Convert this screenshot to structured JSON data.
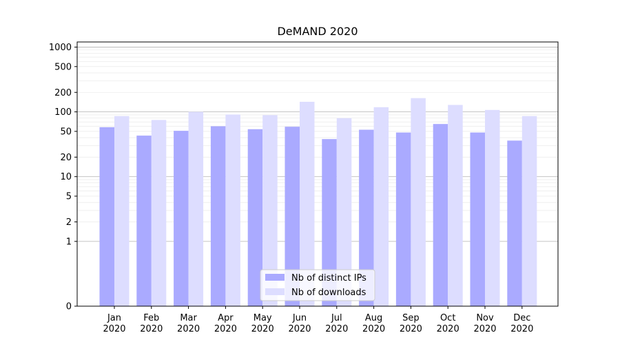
{
  "chart_data": {
    "type": "bar",
    "title": "DeMAND 2020",
    "xlabel": "",
    "ylabel": "",
    "yscale": "symlog",
    "ylim": [
      0,
      1200
    ],
    "grid": "horizontal",
    "legend_position": "bottom-center",
    "categories": [
      [
        "Jan",
        "2020"
      ],
      [
        "Feb",
        "2020"
      ],
      [
        "Mar",
        "2020"
      ],
      [
        "Apr",
        "2020"
      ],
      [
        "May",
        "2020"
      ],
      [
        "Jun",
        "2020"
      ],
      [
        "Jul",
        "2020"
      ],
      [
        "Aug",
        "2020"
      ],
      [
        "Sep",
        "2020"
      ],
      [
        "Oct",
        "2020"
      ],
      [
        "Nov",
        "2020"
      ],
      [
        "Dec",
        "2020"
      ]
    ],
    "yticks": [
      {
        "value": 0,
        "label": "0"
      },
      {
        "value": 1,
        "label": "1"
      },
      {
        "value": 2,
        "label": "2"
      },
      {
        "value": 5,
        "label": "5"
      },
      {
        "value": 10,
        "label": "10"
      },
      {
        "value": 20,
        "label": "20"
      },
      {
        "value": 50,
        "label": "50"
      },
      {
        "value": 100,
        "label": "100"
      },
      {
        "value": 200,
        "label": "200"
      },
      {
        "value": 500,
        "label": "500"
      },
      {
        "value": 1000,
        "label": "1000"
      }
    ],
    "series": [
      {
        "name": "Nb of distinct IPs",
        "color": "#aaaaff",
        "values": [
          58,
          43,
          51,
          60,
          54,
          59,
          38,
          53,
          48,
          65,
          48,
          36
        ]
      },
      {
        "name": "Nb of downloads",
        "color": "#ddddff",
        "values": [
          86,
          75,
          100,
          91,
          89,
          143,
          80,
          118,
          163,
          128,
          107,
          86
        ]
      }
    ]
  }
}
